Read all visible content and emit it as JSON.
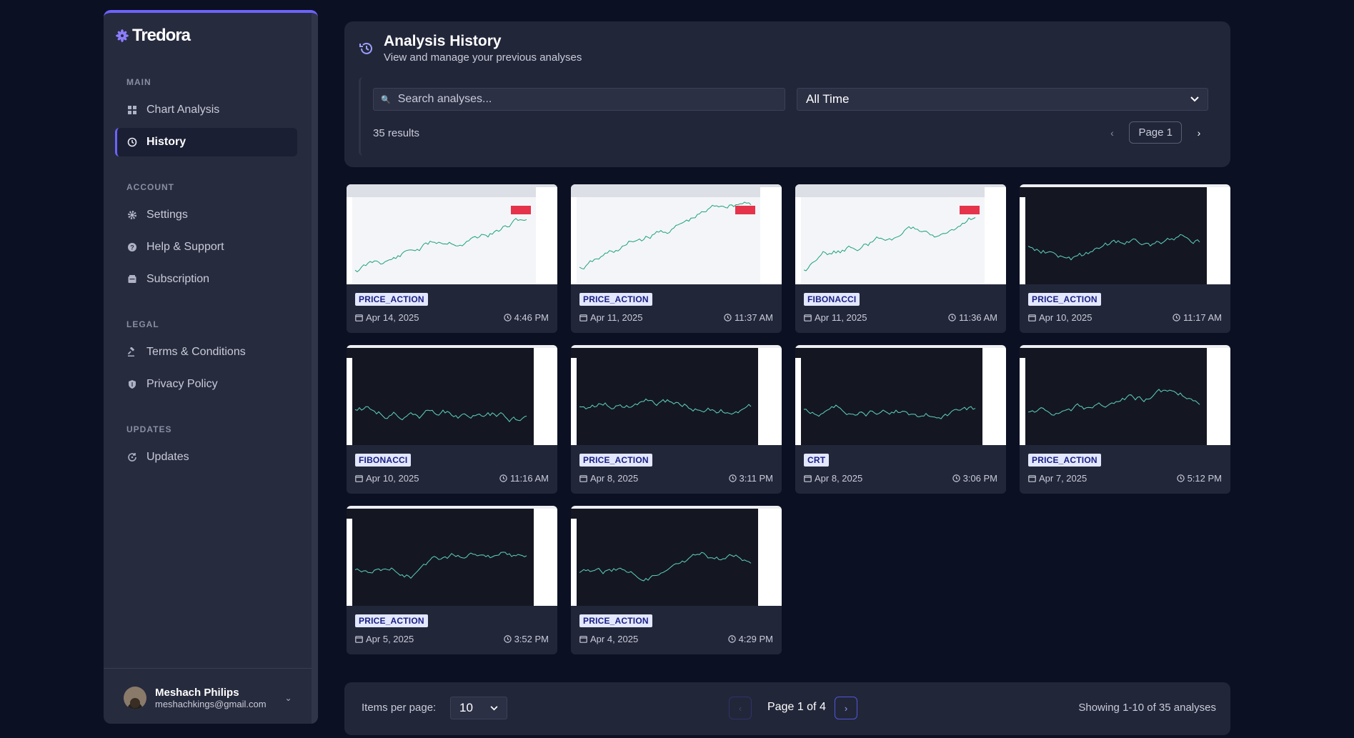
{
  "sidebar": {
    "logo": "Tredora",
    "sections": [
      {
        "title": "MAIN",
        "items": [
          {
            "label": "Chart Analysis",
            "icon": "dashboard-icon",
            "active": false
          },
          {
            "label": "History",
            "icon": "history-icon",
            "active": true
          }
        ]
      },
      {
        "title": "ACCOUNT",
        "items": [
          {
            "label": "Settings",
            "icon": "gear-icon"
          },
          {
            "label": "Help & Support",
            "icon": "help-icon"
          },
          {
            "label": "Subscription",
            "icon": "wallet-icon"
          }
        ]
      },
      {
        "title": "LEGAL",
        "items": [
          {
            "label": "Terms & Conditions",
            "icon": "gavel-icon"
          },
          {
            "label": "Privacy Policy",
            "icon": "shield-icon"
          }
        ]
      },
      {
        "title": "UPDATES",
        "items": [
          {
            "label": "Updates",
            "icon": "refresh-icon"
          }
        ]
      }
    ],
    "user": {
      "name": "Meshach Philips",
      "email": "meshachkings@gmail.com"
    }
  },
  "header": {
    "title": "Analysis History",
    "subtitle": "View and manage your previous analyses",
    "search_placeholder": "Search analyses...",
    "time_filter": "All Time",
    "results": "35 results",
    "page": "Page 1"
  },
  "analyses": [
    {
      "tag": "PRICE_ACTION",
      "date": "Apr 14, 2025",
      "time": "4:46 PM",
      "theme": "browser-light"
    },
    {
      "tag": "PRICE_ACTION",
      "date": "Apr 11, 2025",
      "time": "11:37 AM",
      "theme": "light"
    },
    {
      "tag": "FIBONACCI",
      "date": "Apr 11, 2025",
      "time": "11:36 AM",
      "theme": "light"
    },
    {
      "tag": "PRICE_ACTION",
      "date": "Apr 10, 2025",
      "time": "11:17 AM",
      "theme": "dark"
    },
    {
      "tag": "FIBONACCI",
      "date": "Apr 10, 2025",
      "time": "11:16 AM",
      "theme": "dark"
    },
    {
      "tag": "PRICE_ACTION",
      "date": "Apr 8, 2025",
      "time": "3:11 PM",
      "theme": "dark"
    },
    {
      "tag": "CRT",
      "date": "Apr 8, 2025",
      "time": "3:06 PM",
      "theme": "dark"
    },
    {
      "tag": "PRICE_ACTION",
      "date": "Apr 7, 2025",
      "time": "5:12 PM",
      "theme": "dark"
    },
    {
      "tag": "PRICE_ACTION",
      "date": "Apr 5, 2025",
      "time": "3:52 PM",
      "theme": "dark"
    },
    {
      "tag": "PRICE_ACTION",
      "date": "Apr 4, 2025",
      "time": "4:29 PM",
      "theme": "dark"
    }
  ],
  "footer": {
    "items_per_page_label": "Items per page:",
    "items_per_page": "10",
    "page_label": "Page 1 of 4",
    "showing": "Showing 1-10 of 35 analyses"
  },
  "colors": {
    "accent": "#6c63ff",
    "bg": "#0c1023",
    "card": "#222639",
    "tag_bg": "#e3e7ff",
    "tag_text": "#1a2080"
  }
}
